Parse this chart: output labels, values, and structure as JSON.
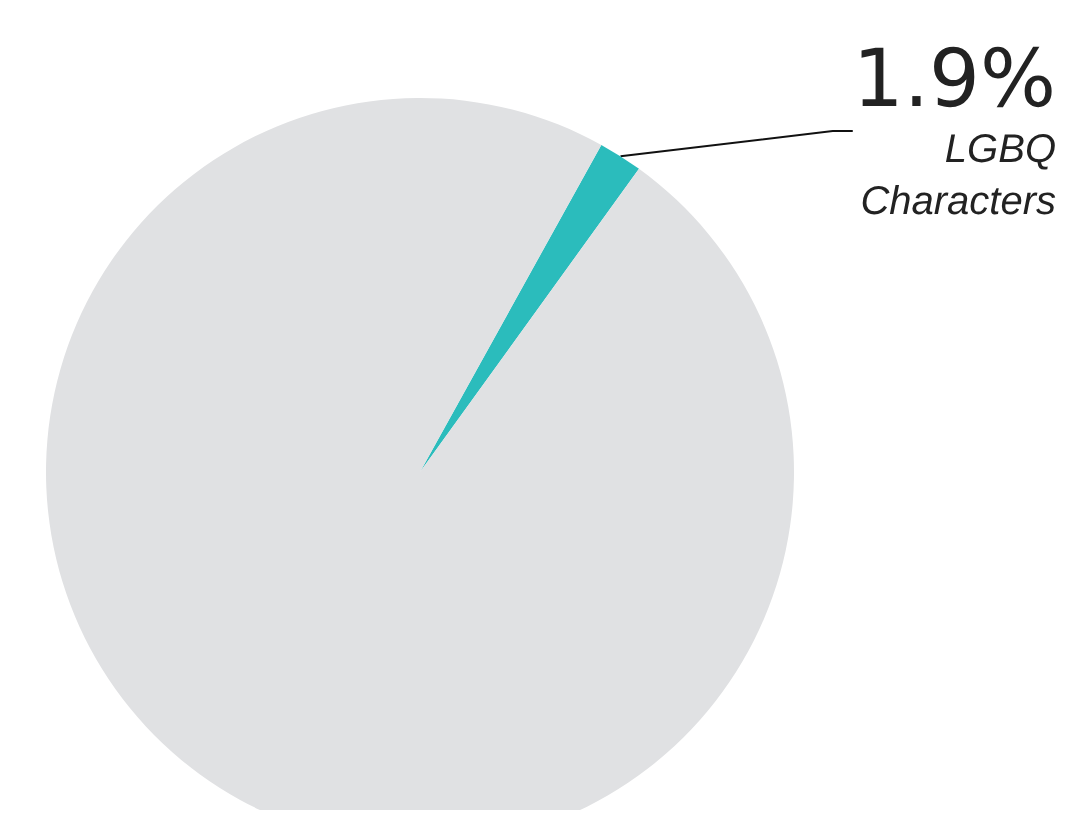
{
  "chart_data": {
    "type": "pie",
    "categories": [
      "LGBQ Characters",
      null
    ],
    "values": [
      1.9,
      98.1
    ],
    "colors": [
      "#2bbcbc",
      "#e0e1e3"
    ],
    "value_labels": [
      "1.9%",
      null
    ],
    "legend": false
  }
}
